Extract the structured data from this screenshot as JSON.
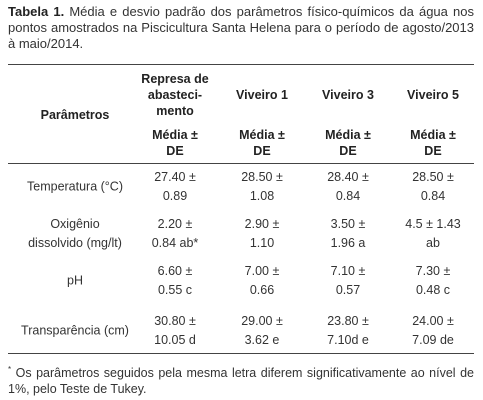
{
  "caption": {
    "label": "Tabela 1.",
    "text": "Média e desvio padrão dos parâmetros físico-químicos da água nos pontos amostrados na Piscicultura Santa Helena para o período de agosto/2013 à maio/2014."
  },
  "table": {
    "row_header": "Parâmetros",
    "columns": [
      [
        "Represa de",
        "abasteci-",
        "mento"
      ],
      [
        "Viveiro 1"
      ],
      [
        "Viveiro 3"
      ],
      [
        "Viveiro 5"
      ]
    ],
    "subheaders": [
      [
        "Média ±",
        "DE"
      ],
      [
        "Média ±",
        "DE"
      ],
      [
        "Média ±",
        "DE"
      ],
      [
        "Média ±",
        "DE"
      ]
    ],
    "rows": [
      {
        "label": [
          "Temperatura (°C)"
        ],
        "cells": [
          [
            "27.40 ±",
            "0.89"
          ],
          [
            "28.50 ±",
            "1.08"
          ],
          [
            "28.40 ±",
            "0.84"
          ],
          [
            "28.50 ±",
            "0.84"
          ]
        ]
      },
      {
        "label": [
          "Oxigênio",
          "dissolvido (mg/lt)"
        ],
        "cells": [
          [
            "2.20 ±",
            "0.84 ab*"
          ],
          [
            "2.90 ±",
            "1.10"
          ],
          [
            "3.50 ±",
            "1.96 a"
          ],
          [
            "4.5 ± 1.43",
            "ab"
          ]
        ]
      },
      {
        "label": [
          "pH"
        ],
        "cells": [
          [
            "6.60 ±",
            "0.55 c"
          ],
          [
            "7.00 ±",
            "0.66"
          ],
          [
            "7.10 ±",
            "0.57"
          ],
          [
            "7.30 ±",
            "0.48 c"
          ]
        ]
      },
      {
        "label": [
          "Transparência (cm)"
        ],
        "cells": [
          [
            "30.80 ±",
            "10.05 d"
          ],
          [
            "29.00 ±",
            "3.62 e"
          ],
          [
            "23.80 ±",
            "7.10d e"
          ],
          [
            "24.00 ±",
            "7.09 de"
          ]
        ]
      }
    ]
  },
  "footnote": {
    "mark": "*",
    "text": "Os parâmetros seguidos pela mesma letra diferem significativamente ao nível de 1%, pelo Teste de Tukey."
  }
}
